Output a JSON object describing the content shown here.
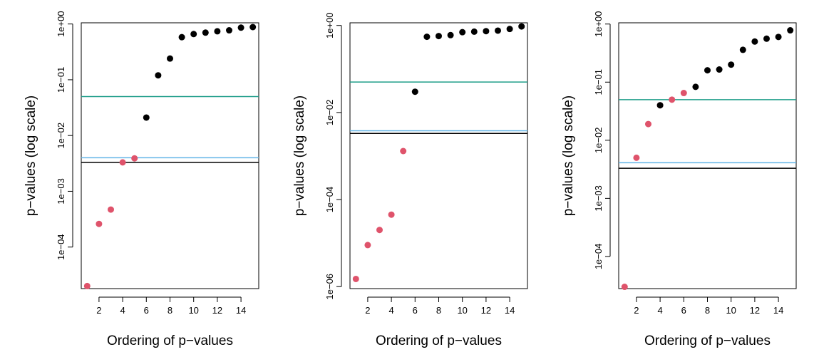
{
  "chart_data": [
    {
      "type": "scatter",
      "xlabel": "Ordering of p−values",
      "ylabel": "p−values (log scale)",
      "y_scale": "log",
      "grid": false,
      "xlim": [
        0.5,
        15.5
      ],
      "ylim": [
        1.8e-05,
        1.05
      ],
      "x_ticks": [
        {
          "value": 2,
          "label": "2"
        },
        {
          "value": 4,
          "label": "4"
        },
        {
          "value": 6,
          "label": "6"
        },
        {
          "value": 8,
          "label": "8"
        },
        {
          "value": 10,
          "label": "10"
        },
        {
          "value": 12,
          "label": "12"
        },
        {
          "value": 14,
          "label": "14"
        }
      ],
      "y_ticks": [
        {
          "value": 0.0001,
          "label": "1e−04"
        },
        {
          "value": 0.001,
          "label": "1e−03"
        },
        {
          "value": 0.01,
          "label": "1e−02"
        },
        {
          "value": 0.1,
          "label": "1e−01"
        },
        {
          "value": 1,
          "label": "1e+00"
        }
      ],
      "series": [
        {
          "color": "#df536b",
          "x": [
            1,
            2,
            3,
            4,
            5
          ],
          "y": [
            2e-05,
            0.00026,
            0.00047,
            0.0033,
            0.0039
          ]
        },
        {
          "color": "#000000",
          "x": [
            6,
            7,
            8,
            9,
            10,
            11,
            12,
            13,
            14,
            15
          ],
          "y": [
            0.021,
            0.12,
            0.24,
            0.58,
            0.66,
            0.7,
            0.74,
            0.77,
            0.86,
            0.88
          ]
        }
      ],
      "hlines": [
        {
          "y": 0.05,
          "color": "#1f9e89"
        },
        {
          "y": 0.004,
          "color": "#61b4e6"
        },
        {
          "y": 0.0033,
          "color": "#000000"
        }
      ]
    },
    {
      "type": "scatter",
      "xlabel": "Ordering of p−values",
      "ylabel": "p−values (log scale)",
      "y_scale": "log",
      "grid": false,
      "xlim": [
        0.5,
        15.5
      ],
      "ylim": [
        9e-07,
        1.15
      ],
      "x_ticks": [
        {
          "value": 2,
          "label": "2"
        },
        {
          "value": 4,
          "label": "4"
        },
        {
          "value": 6,
          "label": "6"
        },
        {
          "value": 8,
          "label": "8"
        },
        {
          "value": 10,
          "label": "10"
        },
        {
          "value": 12,
          "label": "12"
        },
        {
          "value": 14,
          "label": "14"
        }
      ],
      "y_ticks": [
        {
          "value": 1e-06,
          "label": "1e−06"
        },
        {
          "value": 0.0001,
          "label": "1e−04"
        },
        {
          "value": 0.01,
          "label": "1e−02"
        },
        {
          "value": 1,
          "label": "1e+00"
        }
      ],
      "series": [
        {
          "color": "#df536b",
          "x": [
            1,
            2,
            3,
            4,
            5
          ],
          "y": [
            1.5e-06,
            9e-06,
            2e-05,
            4.5e-05,
            0.0013
          ]
        },
        {
          "color": "#000000",
          "x": [
            6,
            7,
            8,
            9,
            10,
            11,
            12,
            13,
            14,
            15
          ],
          "y": [
            0.03,
            0.55,
            0.57,
            0.6,
            0.7,
            0.72,
            0.74,
            0.76,
            0.83,
            0.95
          ]
        }
      ],
      "hlines": [
        {
          "y": 0.05,
          "color": "#1f9e89"
        },
        {
          "y": 0.0038,
          "color": "#61b4e6"
        },
        {
          "y": 0.0033,
          "color": "#000000"
        }
      ]
    },
    {
      "type": "scatter",
      "xlabel": "Ordering of p−values",
      "ylabel": "p−values (log scale)",
      "y_scale": "log",
      "grid": false,
      "xlim": [
        0.5,
        15.5
      ],
      "ylim": [
        2.8e-05,
        1.05
      ],
      "x_ticks": [
        {
          "value": 2,
          "label": "2"
        },
        {
          "value": 4,
          "label": "4"
        },
        {
          "value": 6,
          "label": "6"
        },
        {
          "value": 8,
          "label": "8"
        },
        {
          "value": 10,
          "label": "10"
        },
        {
          "value": 12,
          "label": "12"
        },
        {
          "value": 14,
          "label": "14"
        }
      ],
      "y_ticks": [
        {
          "value": 0.0001,
          "label": "1e−04"
        },
        {
          "value": 0.001,
          "label": "1e−03"
        },
        {
          "value": 0.01,
          "label": "1e−02"
        },
        {
          "value": 0.1,
          "label": "1e−01"
        },
        {
          "value": 1,
          "label": "1e+00"
        }
      ],
      "series": [
        {
          "color": "#df536b",
          "x": [
            1,
            2,
            3,
            4,
            5,
            6
          ],
          "y": [
            3e-05,
            0.005,
            0.019,
            0.04,
            0.05,
            0.065
          ]
        },
        {
          "color": "#000000",
          "x": [
            4,
            7,
            8,
            9,
            10,
            11,
            12,
            13,
            14,
            15
          ],
          "y": [
            0.04,
            0.083,
            0.16,
            0.165,
            0.2,
            0.36,
            0.5,
            0.56,
            0.6,
            0.78
          ]
        }
      ],
      "hlines": [
        {
          "y": 0.05,
          "color": "#1f9e89"
        },
        {
          "y": 0.0041,
          "color": "#61b4e6"
        },
        {
          "y": 0.0033,
          "color": "#000000"
        }
      ]
    }
  ]
}
